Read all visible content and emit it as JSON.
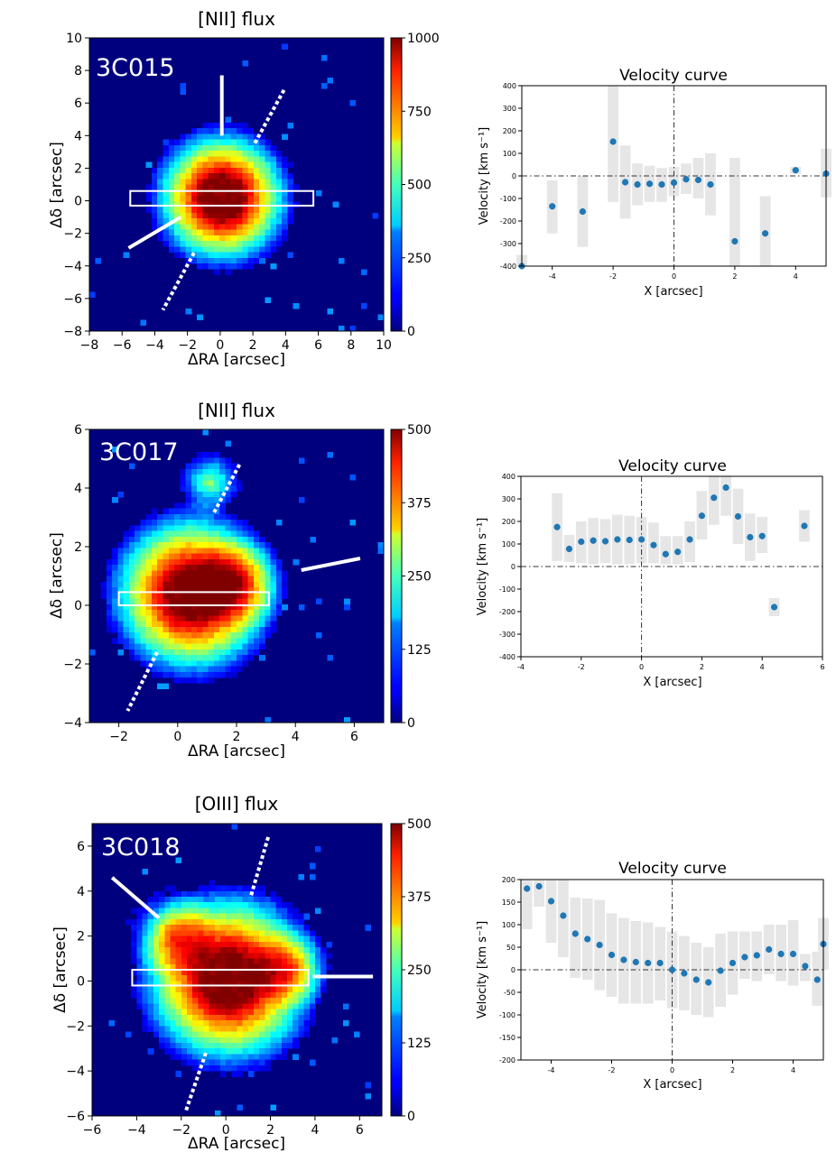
{
  "chart_data": [
    {
      "type": "heatmap",
      "title": "[NII] flux",
      "label": "3C015",
      "xlabel": "ΔRA [arcsec]",
      "ylabel": "Δδ [arcsec]",
      "xlim": [
        -8,
        10
      ],
      "ylim": [
        -8,
        10
      ],
      "xticks": [
        -8,
        -6,
        -4,
        -2,
        0,
        2,
        4,
        6,
        8,
        10
      ],
      "yticks": [
        -8,
        -6,
        -4,
        -2,
        0,
        2,
        4,
        6,
        8,
        10
      ],
      "colorbar": {
        "min": 0,
        "max": 1000,
        "ticks": [
          0,
          250,
          500,
          750,
          1000
        ]
      },
      "blobs": [
        {
          "x": 0.1,
          "y": 0.2,
          "r": 4.5,
          "peak": 1.0
        }
      ],
      "slit": {
        "x0": -5.5,
        "x1": 5.7,
        "y0": -0.3,
        "y1": 0.6
      },
      "axis_lines": [
        {
          "style": "solid",
          "x1": 0.1,
          "y1": 7.7,
          "x2": 0.1,
          "y2": 4.0
        },
        {
          "style": "dotted",
          "x1": 3.9,
          "y1": 6.8,
          "x2": 2.1,
          "y2": 3.5
        },
        {
          "style": "solid",
          "x1": -5.6,
          "y1": -2.9,
          "x2": -2.4,
          "y2": -1.0
        },
        {
          "style": "dotted",
          "x1": -1.6,
          "y1": -3.2,
          "x2": -3.5,
          "y2": -6.7
        }
      ]
    },
    {
      "type": "scatter",
      "title": "Velocity curve",
      "xlabel": "X [arcsec]",
      "ylabel": "Velocity [km s⁻¹]",
      "xlim": [
        -5,
        5
      ],
      "ylim": [
        -400,
        400
      ],
      "xticks": [
        -4,
        -2,
        0,
        2,
        4
      ],
      "yticks": [
        -400,
        -300,
        -200,
        -100,
        0,
        100,
        200,
        300,
        400
      ],
      "x": [
        -5.0,
        -4.0,
        -3.0,
        -2.0,
        -1.6,
        -1.2,
        -0.8,
        -0.4,
        0.0,
        0.4,
        0.8,
        1.2,
        2.0,
        3.0,
        4.0,
        5.0
      ],
      "y": [
        -400,
        -135,
        -158,
        152,
        -28,
        -38,
        -35,
        -38,
        -30,
        -15,
        -18,
        -38,
        -290,
        -255,
        25,
        10
      ],
      "err_low": [
        -450,
        -255,
        -315,
        -115,
        -190,
        -130,
        -115,
        -115,
        -90,
        -80,
        -100,
        -175,
        -410,
        -410,
        10,
        -95
      ],
      "err_high": [
        -350,
        -20,
        0,
        400,
        135,
        55,
        45,
        35,
        40,
        55,
        80,
        100,
        80,
        -90,
        40,
        120
      ]
    },
    {
      "type": "heatmap",
      "title": "[NII] flux",
      "label": "3C017",
      "xlabel": "ΔRA [arcsec]",
      "ylabel": "Δδ [arcsec]",
      "xlim": [
        -3,
        7
      ],
      "ylim": [
        -4,
        6
      ],
      "xticks": [
        -2,
        0,
        2,
        4,
        6
      ],
      "yticks": [
        -4,
        -2,
        0,
        2,
        4,
        6
      ],
      "colorbar": {
        "min": 0,
        "max": 500,
        "ticks": [
          0,
          125,
          250,
          375,
          500
        ]
      },
      "blobs": [
        {
          "x": 0.5,
          "y": 0.4,
          "r": 3.0,
          "peak": 1.0
        },
        {
          "x": 1.1,
          "y": 4.2,
          "r": 1.2,
          "peak": 0.55
        },
        {
          "x": 2.2,
          "y": 0.8,
          "r": 1.8,
          "peak": 0.35
        }
      ],
      "slit": {
        "x0": -2.0,
        "x1": 3.1,
        "y0": 0.0,
        "y1": 0.45
      },
      "axis_lines": [
        {
          "style": "dotted",
          "x1": 2.1,
          "y1": 4.8,
          "x2": 1.2,
          "y2": 3.1
        },
        {
          "style": "solid",
          "x1": 4.2,
          "y1": 1.2,
          "x2": 6.2,
          "y2": 1.6
        },
        {
          "style": "dotted",
          "x1": -0.7,
          "y1": -1.6,
          "x2": -1.7,
          "y2": -3.6
        }
      ]
    },
    {
      "type": "scatter",
      "title": "Velocity curve",
      "xlabel": "X [arcsec]",
      "ylabel": "Velocity [km s⁻¹]",
      "xlim": [
        -4,
        6
      ],
      "ylim": [
        -400,
        400
      ],
      "xticks": [
        -4,
        -2,
        0,
        2,
        4,
        6
      ],
      "yticks": [
        -400,
        -300,
        -200,
        -100,
        0,
        100,
        200,
        300,
        400
      ],
      "x": [
        -2.8,
        -2.4,
        -2.0,
        -1.6,
        -1.2,
        -0.8,
        -0.4,
        0.0,
        0.4,
        0.8,
        1.2,
        1.6,
        2.0,
        2.4,
        2.8,
        3.2,
        3.6,
        4.0,
        4.4,
        5.4
      ],
      "y": [
        175,
        78,
        110,
        115,
        112,
        120,
        118,
        120,
        95,
        55,
        65,
        120,
        225,
        305,
        350,
        222,
        130,
        135,
        -180,
        180
      ],
      "err_low": [
        25,
        20,
        15,
        10,
        15,
        10,
        10,
        15,
        15,
        10,
        10,
        20,
        120,
        185,
        225,
        100,
        25,
        60,
        -220,
        110
      ],
      "err_high": [
        325,
        140,
        200,
        215,
        210,
        230,
        225,
        220,
        195,
        135,
        135,
        200,
        335,
        400,
        400,
        345,
        235,
        220,
        -140,
        250
      ]
    },
    {
      "type": "heatmap",
      "title": "[OIII] flux",
      "label": "3C018",
      "xlabel": "ΔRA [arcsec]",
      "ylabel": "Δδ [arcsec]",
      "xlim": [
        -6,
        7
      ],
      "ylim": [
        -6,
        7
      ],
      "xticks": [
        -6,
        -4,
        -2,
        0,
        2,
        4,
        6
      ],
      "yticks": [
        -6,
        -4,
        -2,
        0,
        2,
        4,
        6
      ],
      "colorbar": {
        "min": 0,
        "max": 500,
        "ticks": [
          0,
          125,
          250,
          375,
          500
        ]
      },
      "blobs": [
        {
          "x": 0.1,
          "y": 0.1,
          "r": 4.2,
          "peak": 1.0
        },
        {
          "x": -2.5,
          "y": 2.2,
          "r": 2.2,
          "peak": 0.45
        },
        {
          "x": 3.0,
          "y": 0.6,
          "r": 2.0,
          "peak": 0.4
        }
      ],
      "slit": {
        "x0": -4.2,
        "x1": 3.7,
        "y0": -0.2,
        "y1": 0.5
      },
      "axis_lines": [
        {
          "style": "solid",
          "x1": -5.1,
          "y1": 4.6,
          "x2": -3.0,
          "y2": 2.8
        },
        {
          "style": "dotted",
          "x1": 1.9,
          "y1": 6.4,
          "x2": 1.1,
          "y2": 3.7
        },
        {
          "style": "solid",
          "x1": 3.9,
          "y1": 0.2,
          "x2": 6.6,
          "y2": 0.2
        },
        {
          "style": "dotted",
          "x1": -0.9,
          "y1": -3.2,
          "x2": -1.8,
          "y2": -5.8
        }
      ]
    },
    {
      "type": "scatter",
      "title": "Velocity curve",
      "xlabel": "X [arcsec]",
      "ylabel": "Velocity [km s⁻¹]",
      "xlim": [
        -5,
        5
      ],
      "ylim": [
        -200,
        200
      ],
      "xticks": [
        -4,
        -2,
        0,
        2,
        4
      ],
      "yticks": [
        -200,
        -150,
        -100,
        -50,
        0,
        50,
        100,
        150,
        200
      ],
      "x": [
        -4.8,
        -4.4,
        -4.0,
        -3.6,
        -3.2,
        -2.8,
        -2.4,
        -2.0,
        -1.6,
        -1.2,
        -0.8,
        -0.4,
        0.0,
        0.4,
        0.8,
        1.2,
        1.6,
        2.0,
        2.4,
        2.8,
        3.2,
        3.6,
        4.0,
        4.4,
        4.8,
        5.0
      ],
      "y": [
        180,
        185,
        152,
        120,
        80,
        68,
        55,
        33,
        22,
        17,
        15,
        15,
        0,
        -8,
        -22,
        -28,
        -2,
        15,
        28,
        32,
        45,
        35,
        35,
        8,
        -22,
        57
      ],
      "err_low": [
        90,
        140,
        60,
        28,
        -18,
        -22,
        -45,
        -60,
        -75,
        -75,
        -75,
        -68,
        -85,
        -90,
        -100,
        -105,
        -82,
        -55,
        -20,
        -25,
        -10,
        -25,
        -35,
        -25,
        -80,
        0
      ],
      "err_high": [
        200,
        200,
        200,
        200,
        160,
        158,
        155,
        125,
        115,
        108,
        105,
        95,
        85,
        75,
        60,
        50,
        80,
        85,
        85,
        85,
        100,
        100,
        110,
        35,
        40,
        115
      ]
    }
  ]
}
